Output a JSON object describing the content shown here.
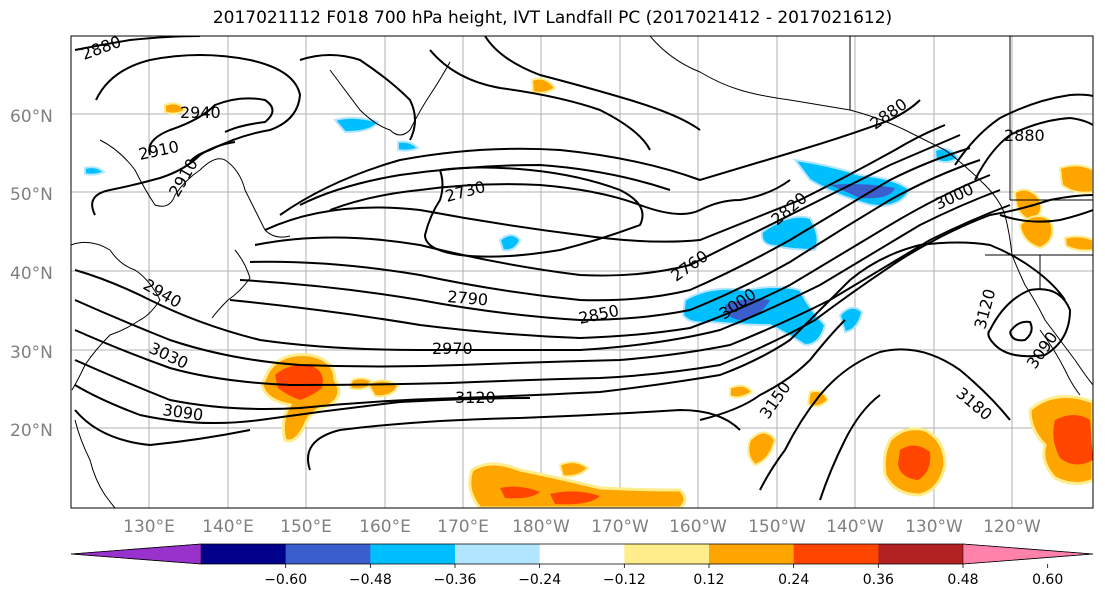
{
  "title": "2017021112 F018 700 hPa height, IVT Landfall PC (2017021412 - 2017021612)",
  "lat_labels": [
    "60°N",
    "50°N",
    "40°N",
    "30°N",
    "20°N"
  ],
  "lon_labels": [
    "130°E",
    "140°E",
    "150°E",
    "160°E",
    "170°E",
    "180°W",
    "170°W",
    "160°W",
    "150°W",
    "140°W",
    "130°W",
    "120°W"
  ],
  "contour_labels": [
    "2880",
    "2940",
    "2910",
    "2910",
    "2730",
    "2790",
    "2850",
    "2760",
    "2820",
    "2970",
    "3000",
    "3120",
    "3150",
    "3180",
    "3090",
    "3030",
    "2940",
    "2880",
    "3000",
    "3120",
    "3090",
    "2880"
  ],
  "colorbar": {
    "colors": [
      "#9932cc",
      "#00008b",
      "#3a5fcd",
      "#00bfff",
      "#b2e5ff",
      "#ffffff",
      "#ffec8b",
      "#ffa500",
      "#ff4500",
      "#b22222",
      "#ff82ab"
    ],
    "tick_labels": [
      "−0.60",
      "−0.48",
      "−0.36",
      "−0.24",
      "−0.12",
      "0.12",
      "0.24",
      "0.36",
      "0.48",
      "0.60"
    ]
  }
}
